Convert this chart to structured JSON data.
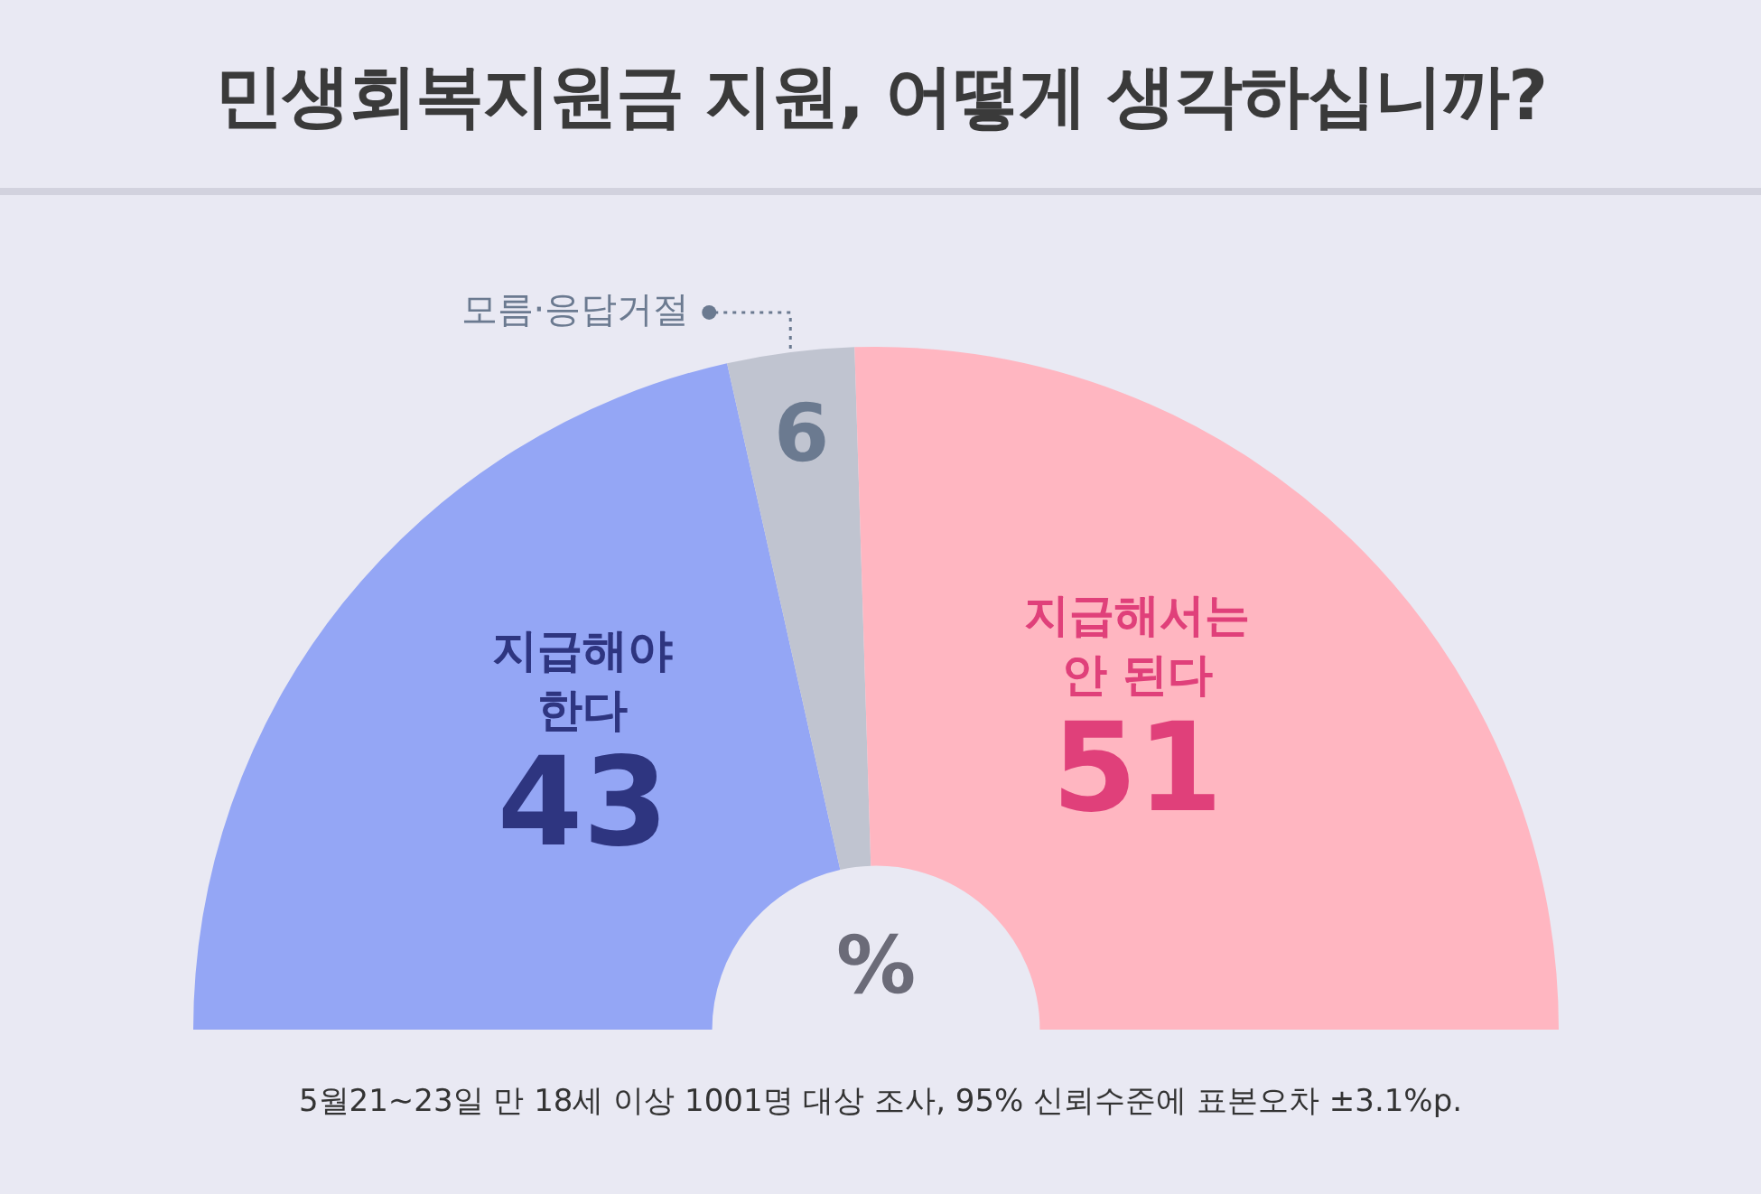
{
  "chart_data": {
    "type": "donut",
    "title": "민생회복지원금 지원, 어떻게 생각하십니까?",
    "categories": [
      "지급해야\n한다",
      "모름·응답거절",
      "지급해서는\n안 된다"
    ],
    "values": [
      43,
      6,
      51
    ],
    "colors": [
      "#94a6f5",
      "#c0c4d0",
      "#ffb6c1"
    ],
    "data_labels": true,
    "annotations": [
      "%",
      "5월21~23일 만 18세 이상 1001명 대상 조사, 95% 신뢰수준에 표본오차 ±3.1%p."
    ]
  }
}
